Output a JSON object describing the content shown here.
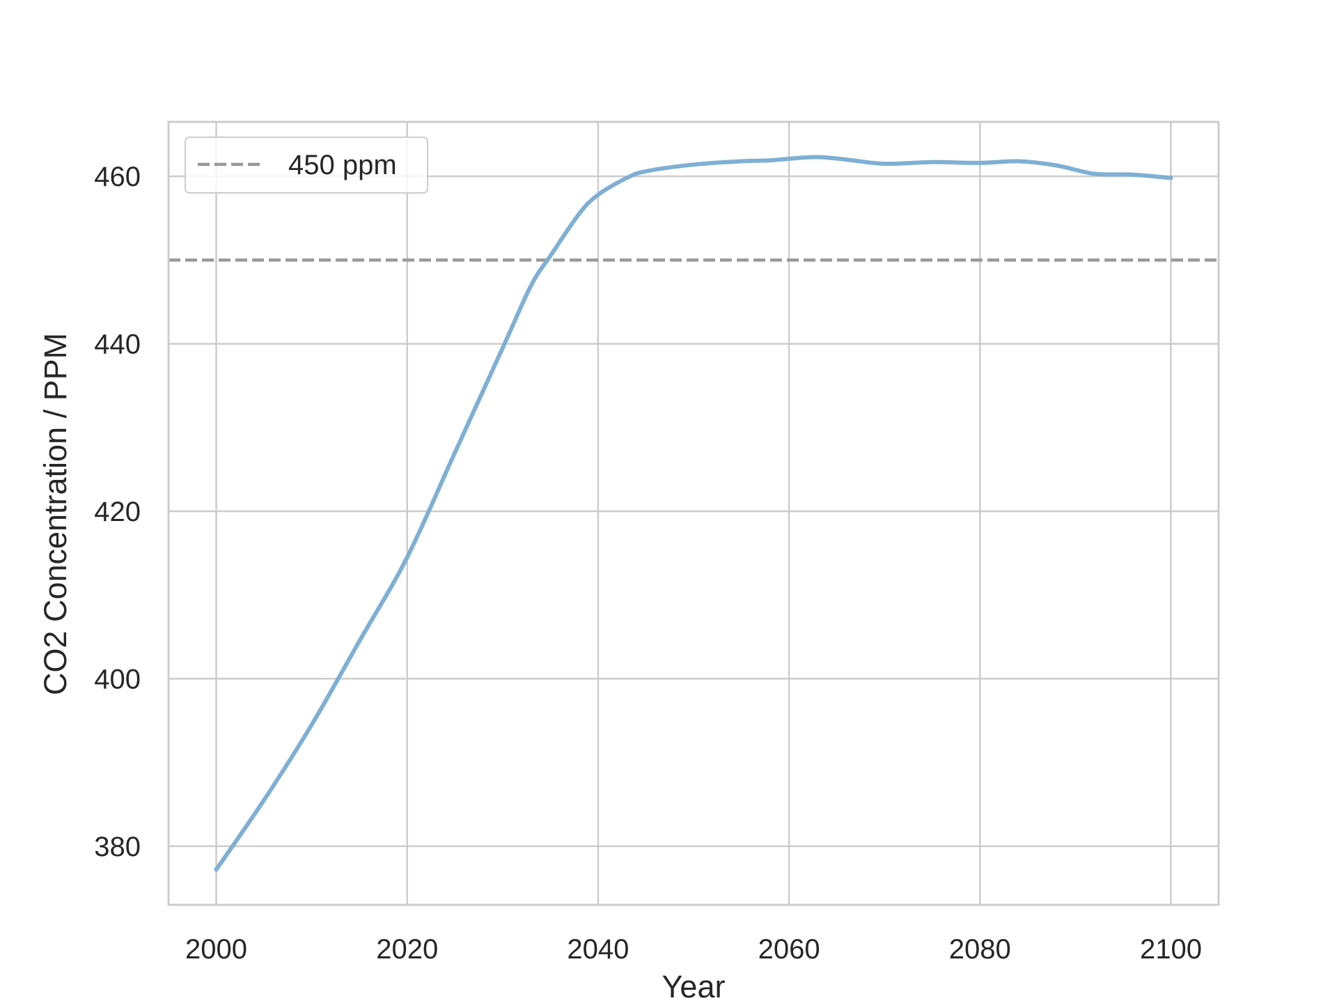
{
  "chart_data": {
    "type": "line",
    "title": "",
    "xlabel": "Year",
    "ylabel": "CO2 Concentration / PPM",
    "xlim": [
      1995,
      2105
    ],
    "ylim": [
      373,
      466.5
    ],
    "x_ticks": [
      2000,
      2020,
      2040,
      2060,
      2080,
      2100
    ],
    "y_ticks": [
      380,
      400,
      420,
      440,
      460
    ],
    "grid": true,
    "legend_position": "top-left",
    "series": [
      {
        "color": "#7fafd4",
        "x": [
          2000,
          2005,
          2010,
          2015,
          2020,
          2025,
          2030,
          2033,
          2035,
          2038,
          2040,
          2043,
          2045,
          2050,
          2055,
          2058,
          2060,
          2063,
          2066,
          2070,
          2075,
          2080,
          2084,
          2088,
          2092,
          2096,
          2100
        ],
        "y": [
          377.2,
          385.5,
          394.5,
          404.5,
          414.5,
          427.0,
          439.5,
          447.0,
          450.5,
          455.5,
          457.8,
          459.8,
          460.6,
          461.4,
          461.8,
          461.9,
          462.1,
          462.3,
          462.0,
          461.5,
          461.7,
          461.6,
          461.8,
          461.3,
          460.3,
          460.2,
          459.8
        ]
      }
    ],
    "reference_lines": [
      {
        "y": 450,
        "label": "450 ppm",
        "color": "#999999",
        "style": "dashed"
      }
    ]
  }
}
